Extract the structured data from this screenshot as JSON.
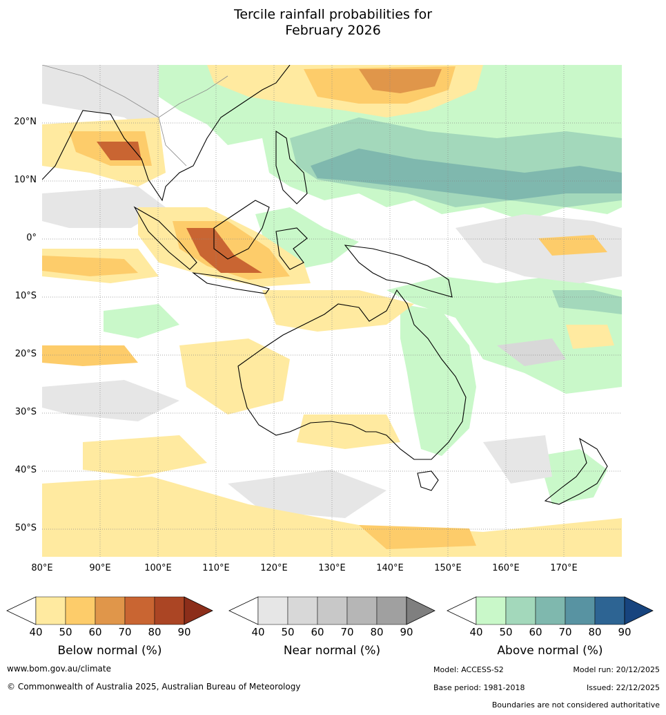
{
  "title_line1": "Tercile rainfall probabilities for",
  "title_line2": "February 2026",
  "map": {
    "lat_labels": [
      "20°N",
      "10°N",
      "0°",
      "10°S",
      "20°S",
      "30°S",
      "40°S",
      "50°S"
    ],
    "lon_labels": [
      "80°E",
      "90°E",
      "100°E",
      "110°E",
      "120°E",
      "130°E",
      "140°E",
      "150°E",
      "160°E",
      "170°E"
    ],
    "colors": {
      "below": [
        "#ffeaa0",
        "#fdcc6a",
        "#e0964a",
        "#c96532",
        "#ab4524",
        "#8c2e1a"
      ],
      "near": [
        "#e6e6e6",
        "#d8d8d8",
        "#c8c8c8",
        "#b6b6b6",
        "#a0a0a0",
        "#7f7f7f"
      ],
      "above": [
        "#c9f8c9",
        "#a3d8bb",
        "#7fb8ae",
        "#5893a2",
        "#2d6493",
        "#17447e"
      ],
      "land_outline": "#000000",
      "border": "#8a8a8a"
    }
  },
  "colorbars": [
    {
      "title": "Below normal (%)",
      "ticks": [
        "40",
        "50",
        "60",
        "70",
        "80",
        "90"
      ]
    },
    {
      "title": "Near normal (%)",
      "ticks": [
        "40",
        "50",
        "60",
        "70",
        "80",
        "90"
      ]
    },
    {
      "title": "Above normal (%)",
      "ticks": [
        "40",
        "50",
        "60",
        "70",
        "80",
        "90"
      ]
    }
  ],
  "footer": {
    "website": "www.bom.gov.au/climate",
    "copyright": "© Commonwealth of Australia 2025, Australian Bureau of Meteorology",
    "model": "Model: ACCESS-S2",
    "model_run": "Model run: 20/12/2025",
    "base_period": "Base period: 1981-2018",
    "issued": "Issued: 22/12/2025",
    "disclaimer": "Boundaries are not considered authoritative"
  }
}
